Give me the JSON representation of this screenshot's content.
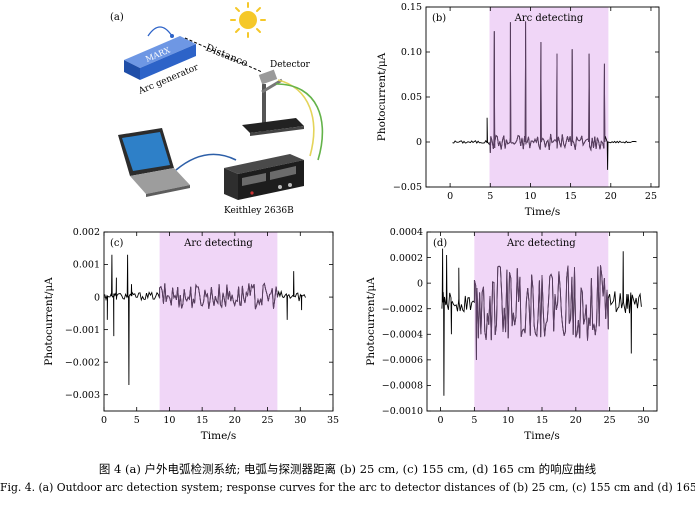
{
  "panel_a": {
    "label": "(a)",
    "labels": {
      "generator": "Arc generator",
      "mark": "MARX",
      "distance": "Distance",
      "detector": "Detector",
      "instrument": "Keithley 2636B"
    }
  },
  "colors": {
    "highlight": "#f0d6f7",
    "trace_dense": "#5b3f63",
    "trace_plain": "#000000",
    "generator_blue": "#2d63c8",
    "cable_yellow": "#e4d45a",
    "cable_green": "#64b34a",
    "cable_blue": "#2d5fa8",
    "sun": "#f5c829"
  },
  "captions": {
    "cn": "图 4    (a) 户外电弧检测系统; 电弧与探测器距离 (b) 25 cm, (c) 155 cm, (d) 165 cm 的响应曲线",
    "en": "Fig. 4. (a) Outdoor arc detection system; response curves for the arc to detector distances of (b) 25 cm, (c) 155 cm and (d) 165 cm."
  },
  "chart_data": [
    {
      "id": "b",
      "panel_label": "(b)",
      "type": "line",
      "xlabel": "Time/s",
      "ylabel": "Photocurrent/μA",
      "xlim": [
        -3,
        26
      ],
      "ylim": [
        -0.05,
        0.15
      ],
      "xticks": [
        0,
        5,
        10,
        15,
        20,
        25
      ],
      "yticks": [
        -0.05,
        0,
        0.05,
        0.1,
        0.15
      ],
      "ytick_labels": [
        "−0.05",
        "0",
        "0.05",
        "0.10",
        "0.15"
      ],
      "highlight": {
        "label": "Arc detecting",
        "x_range": [
          4.9,
          19.7
        ]
      },
      "series": [
        {
          "noise_segments": [
            {
              "x0": 0.3,
              "x1": 4.6,
              "amp": 0.0015
            },
            {
              "x0": 4.9,
              "x1": 19.3,
              "amp": 0.009
            },
            {
              "x0": 20.0,
              "x1": 23.2,
              "amp": 0.001
            }
          ],
          "baseline": 0,
          "spikes": [
            {
              "x": 4.6,
              "y": 0.027
            },
            {
              "x": 5.0,
              "y": -0.012
            },
            {
              "x": 5.5,
              "y": 0.123
            },
            {
              "x": 7.5,
              "y": 0.133
            },
            {
              "x": 9.4,
              "y": 0.134
            },
            {
              "x": 11.3,
              "y": 0.111
            },
            {
              "x": 13.3,
              "y": 0.098
            },
            {
              "x": 15.2,
              "y": 0.103
            },
            {
              "x": 17.3,
              "y": 0.098
            },
            {
              "x": 19.2,
              "y": 0.087
            },
            {
              "x": 19.6,
              "y": -0.031
            }
          ],
          "dense_color_range": [
            4.9,
            19.3
          ]
        }
      ]
    },
    {
      "id": "c",
      "panel_label": "(c)",
      "type": "line",
      "xlabel": "Time/s",
      "ylabel": "Photocurrent/μA",
      "xlim": [
        0,
        35
      ],
      "ylim": [
        -0.0035,
        0.002
      ],
      "xticks": [
        0,
        5,
        10,
        15,
        20,
        25,
        30,
        35
      ],
      "yticks": [
        -0.003,
        -0.002,
        -0.001,
        0,
        0.001,
        0.002
      ],
      "ytick_labels": [
        "−0.003",
        "−0.002",
        "−0.001",
        "0",
        "0.001",
        "0.002"
      ],
      "highlight": {
        "label": "Arc detecting",
        "x_range": [
          8.5,
          26.5
        ]
      },
      "series": [
        {
          "noise_segments": [
            {
              "x0": 0.1,
              "x1": 8.5,
              "amp": 0.00012
            },
            {
              "x0": 8.5,
              "x1": 26.5,
              "amp": 0.0004
            },
            {
              "x0": 26.5,
              "x1": 30.8,
              "amp": 0.00015
            }
          ],
          "baseline": 3e-05,
          "spikes": [
            {
              "x": 0.5,
              "y": -0.0007
            },
            {
              "x": 1.2,
              "y": 0.0013
            },
            {
              "x": 1.5,
              "y": -0.0012
            },
            {
              "x": 1.9,
              "y": 0.0006
            },
            {
              "x": 3.6,
              "y": 0.0013
            },
            {
              "x": 3.8,
              "y": -0.0027
            },
            {
              "x": 4.2,
              "y": 0.0004
            },
            {
              "x": 28.0,
              "y": -0.0007
            },
            {
              "x": 29.0,
              "y": 0.0008
            },
            {
              "x": 30.2,
              "y": -0.0004
            }
          ],
          "dense_color_range": [
            8.5,
            26.5
          ]
        }
      ]
    },
    {
      "id": "d",
      "panel_label": "(d)",
      "type": "line",
      "xlabel": "Time/s",
      "ylabel": "Photocurrent/μA",
      "xlim": [
        -2,
        32
      ],
      "ylim": [
        -0.001,
        0.0004
      ],
      "xticks": [
        0,
        5,
        10,
        15,
        20,
        25,
        30
      ],
      "yticks": [
        -0.001,
        -0.0008,
        -0.0006,
        -0.0004,
        -0.0002,
        0,
        0.0002,
        0.0004
      ],
      "ytick_labels": [
        "−0.0010",
        "−0.0008",
        "−0.0006",
        "−0.0004",
        "−0.0002",
        "0",
        "0.0002",
        "0.0004"
      ],
      "highlight": {
        "label": "Arc detecting",
        "x_range": [
          5.0,
          24.8
        ]
      },
      "series": [
        {
          "noise_segments": [
            {
              "x0": 0.2,
              "x1": 5.0,
              "amp": 8e-05
            },
            {
              "x0": 5.0,
              "x1": 24.8,
              "amp": 0.0003
            },
            {
              "x0": 24.8,
              "x1": 29.7,
              "amp": 9e-05
            }
          ],
          "baseline": -0.00015,
          "spikes": [
            {
              "x": 0.3,
              "y": 0.00027
            },
            {
              "x": 0.5,
              "y": -0.00088
            },
            {
              "x": 0.9,
              "y": 0.00022
            },
            {
              "x": 1.6,
              "y": -0.0004
            },
            {
              "x": 2.7,
              "y": 0.00012
            },
            {
              "x": 5.3,
              "y": -0.0006
            },
            {
              "x": 27.0,
              "y": 0.00025
            },
            {
              "x": 27.6,
              "y": -0.0002
            },
            {
              "x": 28.2,
              "y": -0.00055
            }
          ],
          "dense_color_range": [
            5.0,
            24.8
          ]
        }
      ]
    }
  ]
}
